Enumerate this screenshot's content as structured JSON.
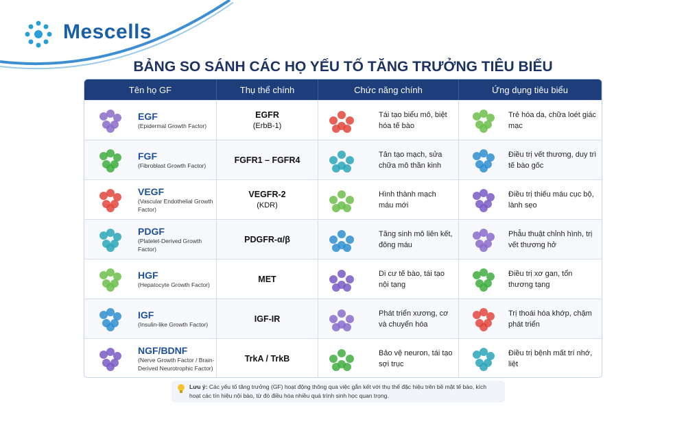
{
  "logo": "Mescells",
  "title": "BẢNG SO SÁNH CÁC HỌ YẾU TỐ TĂNG TRƯỞNG TIÊU BIỂU",
  "table": {
    "headers": [
      "Tên họ GF",
      "Thụ thể chính",
      "Chức năng chính",
      "Ứng dụng tiêu biểu"
    ],
    "rows": [
      {
        "name": "EGF",
        "full": "(Epidermal Growth Factor)",
        "receptor": "EGFR",
        "receptor_sub": "(ErbB-1)",
        "function": "Tái tạo biểu mô, biệt hóa tế bào",
        "application": "Trẻ hóa da, chữa loét giác mạc"
      },
      {
        "name": "FGF",
        "full": "(Fibroblast Growth Factor)",
        "receptor": "FGFR1 – FGFR4",
        "function": "Tân tạo mạch, sửa chữa mô thần kinh",
        "application": "Điều trị vết thương, duy trì tế bào gốc"
      },
      {
        "name": "VEGF",
        "full": "(Vascular Endothelial Growth Factor)",
        "receptor": "VEGFR-2",
        "receptor_sub": "(KDR)",
        "function": "Hình thành mạch máu mới",
        "application": "Điều trị thiếu máu cục bộ, lành sẹo"
      },
      {
        "name": "PDGF",
        "full": "(Platelet-Derived Growth Factor)",
        "receptor": "PDGFR-α/β",
        "function": "Tăng sinh mô liên kết, đông máu",
        "application": "Phẫu thuật chỉnh hình, trị vết thương hở"
      },
      {
        "name": "HGF",
        "full": "(Hepatocyte Growth Factor)",
        "receptor": "MET",
        "function": "Di cư tế bào, tái tạo nội tạng",
        "application": "Điều trị xơ gan, tổn thương tạng"
      },
      {
        "name": "IGF",
        "full": "(Insulin-like Growth Factor)",
        "receptor": "IGF-IR",
        "function": "Phát triển xương, cơ và chuyển hóa",
        "application": "Trị thoái hóa khớp, chậm phát triển"
      },
      {
        "name": "NGF/BDNF",
        "full": "(Nerve Growth Factor / Brain-Derived Neurotrophic Factor)",
        "receptor": "TrkA / TrkB",
        "function": "Bảo vệ neuron, tái tạo sợi trục",
        "application": "Điều trị bệnh mất trí nhớ, liệt"
      }
    ]
  },
  "note": {
    "label": "Lưu ý:",
    "text": "Các yếu tố tăng trưởng (GF) hoạt động thông qua việc gắn kết với thụ thể đặc hiệu trên bề mặt tế bào, kích hoạt các tín hiệu nội bào, từ đó điều hòa nhiều quá trình sinh học quan trọng."
  }
}
